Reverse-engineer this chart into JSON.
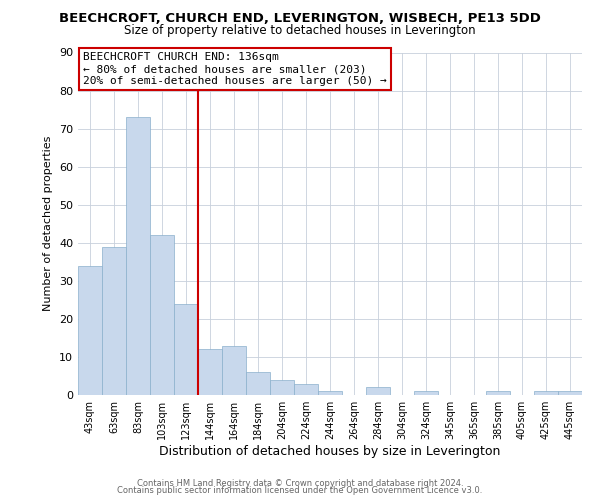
{
  "title": "BEECHCROFT, CHURCH END, LEVERINGTON, WISBECH, PE13 5DD",
  "subtitle": "Size of property relative to detached houses in Leverington",
  "xlabel": "Distribution of detached houses by size in Leverington",
  "ylabel": "Number of detached properties",
  "bar_color": "#c8d8ec",
  "bar_edge_color": "#8ab0cc",
  "bar_categories": [
    "43sqm",
    "63sqm",
    "83sqm",
    "103sqm",
    "123sqm",
    "144sqm",
    "164sqm",
    "184sqm",
    "204sqm",
    "224sqm",
    "244sqm",
    "264sqm",
    "284sqm",
    "304sqm",
    "324sqm",
    "345sqm",
    "365sqm",
    "385sqm",
    "405sqm",
    "425sqm",
    "445sqm"
  ],
  "bar_values": [
    34,
    39,
    73,
    42,
    24,
    12,
    13,
    6,
    4,
    3,
    1,
    0,
    2,
    0,
    1,
    0,
    0,
    1,
    0,
    1,
    1
  ],
  "vline_x": 4.5,
  "vline_color": "#cc0000",
  "ylim": [
    0,
    90
  ],
  "yticks": [
    0,
    10,
    20,
    30,
    40,
    50,
    60,
    70,
    80,
    90
  ],
  "annotation_title": "BEECHCROFT CHURCH END: 136sqm",
  "annotation_line1": "← 80% of detached houses are smaller (203)",
  "annotation_line2": "20% of semi-detached houses are larger (50) →",
  "annotation_box_color": "#ffffff",
  "annotation_box_edge": "#cc0000",
  "footer_line1": "Contains HM Land Registry data © Crown copyright and database right 2024.",
  "footer_line2": "Contains public sector information licensed under the Open Government Licence v3.0.",
  "bg_color": "#ffffff",
  "grid_color": "#c8d0dc"
}
